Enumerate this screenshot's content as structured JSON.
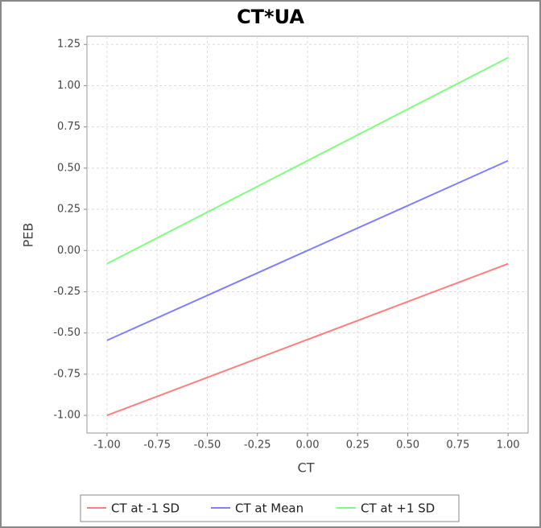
{
  "chart_data": {
    "type": "line",
    "title": "CT*UA",
    "x_label": "CT",
    "y_label": "PEB",
    "x": [
      -1,
      1
    ],
    "series": [
      {
        "name": "CT at -1 SD",
        "color": "#ff7f7f",
        "values": [
          -1.0,
          -0.08
        ]
      },
      {
        "name": "CT at Mean",
        "color": "#7f7fff",
        "values": [
          -0.545,
          0.545
        ]
      },
      {
        "name": "CT at +1 SD",
        "color": "#7fff7f",
        "values": [
          -0.08,
          1.17
        ]
      }
    ],
    "xlim": [
      -1.1,
      1.1
    ],
    "ylim": [
      -1.107,
      1.3
    ],
    "xticks": [
      {
        "value": -1,
        "label": "-1.00"
      },
      {
        "value": -0.75,
        "label": "-0.75"
      },
      {
        "value": -0.5,
        "label": "-0.50"
      },
      {
        "value": -0.25,
        "label": "-0.25"
      },
      {
        "value": 0,
        "label": "0.00"
      },
      {
        "value": 0.25,
        "label": "0.25"
      },
      {
        "value": 0.5,
        "label": "0.50"
      },
      {
        "value": 0.75,
        "label": "0.75"
      },
      {
        "value": 1,
        "label": "1.00"
      }
    ],
    "yticks": [
      {
        "value": -1,
        "label": "-1.00"
      },
      {
        "value": -0.75,
        "label": "-0.75"
      },
      {
        "value": -0.5,
        "label": "-0.50"
      },
      {
        "value": -0.25,
        "label": "-0.25"
      },
      {
        "value": 0,
        "label": "0.00"
      },
      {
        "value": 0.25,
        "label": "0.25"
      },
      {
        "value": 0.5,
        "label": "0.50"
      },
      {
        "value": 0.75,
        "label": "0.75"
      },
      {
        "value": 1,
        "label": "1.00"
      },
      {
        "value": 1.25,
        "label": "1.25"
      }
    ],
    "grid": true
  }
}
